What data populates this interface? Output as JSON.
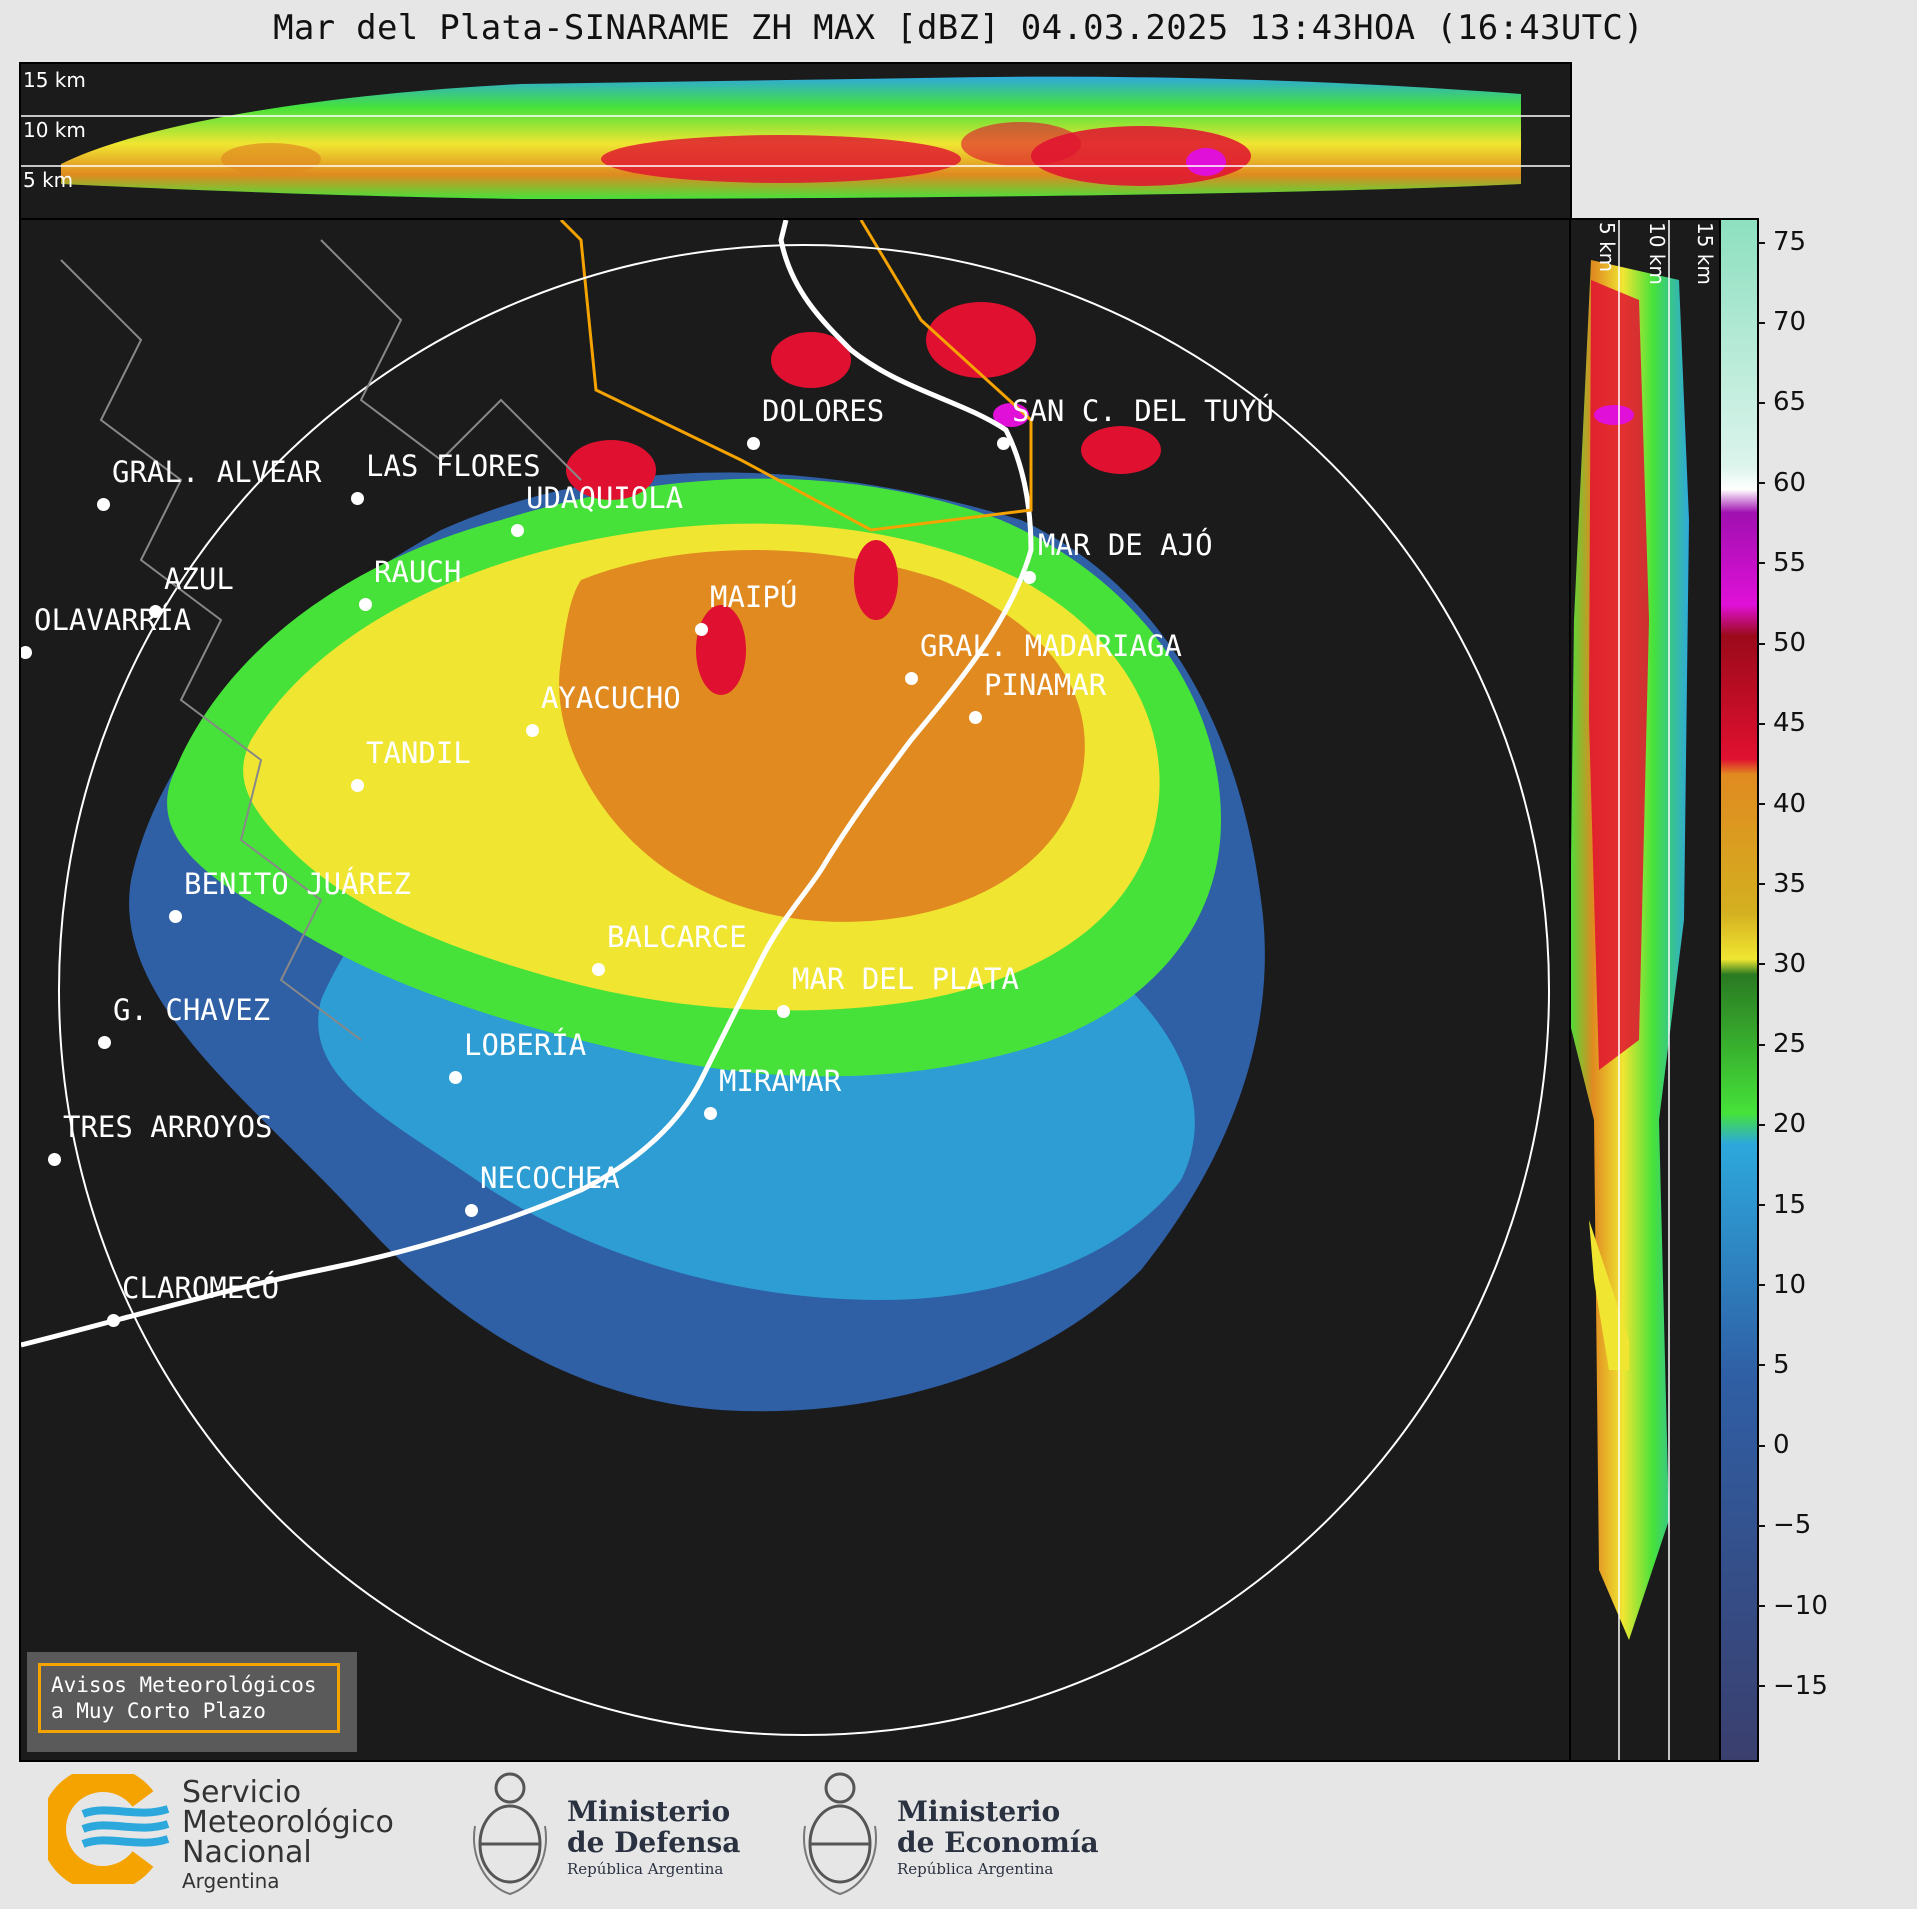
{
  "title": "Mar del Plata-SINARAME ZH MAX [dBZ] 04.03.2025 13:43HOA (16:43UTC)",
  "top_strip": {
    "height_labels": [
      "15 km",
      "10 km",
      "5 km"
    ]
  },
  "right_strip": {
    "height_labels": [
      "5 km",
      "10 km",
      "15 km"
    ]
  },
  "colorbar": {
    "unit": "dBZ",
    "ticks": [
      "75",
      "70",
      "65",
      "60",
      "55",
      "50",
      "45",
      "40",
      "35",
      "30",
      "25",
      "20",
      "15",
      "10",
      "5",
      "0",
      "−5",
      "−10",
      "−15"
    ],
    "min": -19.5,
    "max": 76.5,
    "colors": {
      "deep_blue": "#3a3f6e",
      "blue": "#2f5fa5",
      "light_blue": "#2da8dc",
      "green": "#46e23a",
      "dark_green": "#2a7a22",
      "yellow": "#f0e632",
      "orange": "#e08a20",
      "red": "#e01030",
      "dark_red": "#9b0a1a",
      "magenta": "#e010d8",
      "white": "#ffffff",
      "mint": "#8de0c0"
    }
  },
  "cities": [
    {
      "name": "GRAL. ALVEAR"
    },
    {
      "name": "LAS FLORES"
    },
    {
      "name": "DOLORES"
    },
    {
      "name": "SAN C. DEL TUYÚ"
    },
    {
      "name": "UDAQUIOLA"
    },
    {
      "name": "MAR DE AJÓ"
    },
    {
      "name": "AZUL"
    },
    {
      "name": "RAUCH"
    },
    {
      "name": "MAIPÚ"
    },
    {
      "name": "OLAVARRÍA"
    },
    {
      "name": "GRAL. MADARIAGA"
    },
    {
      "name": "PINAMAR"
    },
    {
      "name": "AYACUCHO"
    },
    {
      "name": "TANDIL"
    },
    {
      "name": "BENITO JUÁREZ"
    },
    {
      "name": "BALCARCE"
    },
    {
      "name": "MAR DEL PLATA"
    },
    {
      "name": "G. CHAVEZ"
    },
    {
      "name": "LOBERÍA"
    },
    {
      "name": "MIRAMAR"
    },
    {
      "name": "TRES ARROYOS"
    },
    {
      "name": "NECOCHEA"
    },
    {
      "name": "CLAROMECÓ"
    }
  ],
  "avisos": {
    "line1": "Avisos Meteorológicos",
    "line2": "a Muy Corto Plazo"
  },
  "footer": {
    "smn": {
      "line1": "Servicio",
      "line2": "Meteorológico",
      "line3": "Nacional",
      "country": "Argentina"
    },
    "defensa": {
      "line1": "Ministerio",
      "line2": "de Defensa",
      "sub": "República Argentina"
    },
    "economia": {
      "line1": "Ministerio",
      "line2": "de Economía",
      "sub": "República Argentina"
    }
  }
}
